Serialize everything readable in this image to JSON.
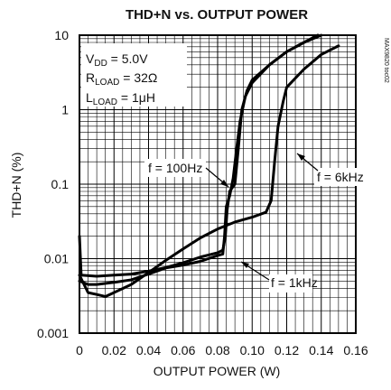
{
  "chart_data": {
    "type": "line",
    "title": "THD+N vs. OUTPUT POWER",
    "xlabel": "OUTPUT POWER (W)",
    "ylabel": "THD+N (%)",
    "x_scale": "linear",
    "y_scale": "log",
    "xlim": [
      0,
      0.16
    ],
    "ylim": [
      0.001,
      10
    ],
    "x_ticks": [
      "0",
      "0.02",
      "0.04",
      "0.06",
      "0.08",
      "0.10",
      "0.12",
      "0.14",
      "0.16"
    ],
    "y_ticks": [
      "0.001",
      "0.01",
      "0.1",
      "1",
      "10"
    ],
    "grid": true,
    "conditions": {
      "vdd_base": "V",
      "vdd_sub": "DD",
      "vdd_value": " = 5.0V",
      "rload_base": "R",
      "rload_sub": "LOAD",
      "rload_value": " = 32Ω",
      "lload_base": "L",
      "lload_sub": "LOAD",
      "lload_value": " = 1μH"
    },
    "side_label": "MAX9820 toc02",
    "series": [
      {
        "name": "f = 100Hz",
        "points": [
          [
            0,
            0.02
          ],
          [
            0.001,
            0.006
          ],
          [
            0.01,
            0.0058
          ],
          [
            0.02,
            0.006
          ],
          [
            0.03,
            0.0062
          ],
          [
            0.04,
            0.0068
          ],
          [
            0.05,
            0.0076
          ],
          [
            0.06,
            0.0088
          ],
          [
            0.07,
            0.0105
          ],
          [
            0.08,
            0.012
          ],
          [
            0.083,
            0.013
          ],
          [
            0.0845,
            0.02
          ],
          [
            0.0855,
            0.045
          ],
          [
            0.087,
            0.08
          ],
          [
            0.0885,
            0.09
          ],
          [
            0.09,
            0.1
          ],
          [
            0.092,
            0.3
          ],
          [
            0.094,
            1.0
          ],
          [
            0.097,
            1.8
          ],
          [
            0.1,
            2.5
          ],
          [
            0.11,
            4.0
          ],
          [
            0.12,
            6.0
          ],
          [
            0.13,
            8.0
          ],
          [
            0.138,
            10
          ]
        ]
      },
      {
        "name": "f = 1kHz",
        "points": [
          [
            0,
            0.005
          ],
          [
            0.005,
            0.0045
          ],
          [
            0.01,
            0.0045
          ],
          [
            0.02,
            0.0048
          ],
          [
            0.03,
            0.0052
          ],
          [
            0.04,
            0.0062
          ],
          [
            0.05,
            0.0075
          ],
          [
            0.06,
            0.0082
          ],
          [
            0.07,
            0.0092
          ],
          [
            0.08,
            0.011
          ],
          [
            0.083,
            0.0115
          ],
          [
            0.084,
            0.02
          ],
          [
            0.085,
            0.05
          ],
          [
            0.087,
            0.07
          ],
          [
            0.089,
            0.12
          ],
          [
            0.091,
            0.3
          ],
          [
            0.093,
            0.7
          ],
          [
            0.096,
            1.5
          ],
          [
            0.1,
            2.3
          ],
          [
            0.11,
            4.0
          ],
          [
            0.12,
            6.0
          ],
          [
            0.13,
            8.0
          ],
          [
            0.14,
            10
          ]
        ]
      },
      {
        "name": "f = 6kHz",
        "points": [
          [
            0,
            0.006
          ],
          [
            0.005,
            0.0035
          ],
          [
            0.01,
            0.0033
          ],
          [
            0.015,
            0.0031
          ],
          [
            0.02,
            0.0035
          ],
          [
            0.03,
            0.0045
          ],
          [
            0.04,
            0.0065
          ],
          [
            0.05,
            0.0095
          ],
          [
            0.06,
            0.0135
          ],
          [
            0.07,
            0.019
          ],
          [
            0.08,
            0.025
          ],
          [
            0.09,
            0.031
          ],
          [
            0.1,
            0.036
          ],
          [
            0.108,
            0.042
          ],
          [
            0.111,
            0.06
          ],
          [
            0.113,
            0.2
          ],
          [
            0.115,
            0.6
          ],
          [
            0.118,
            1.3
          ],
          [
            0.12,
            2.0
          ],
          [
            0.13,
            3.5
          ],
          [
            0.14,
            5.5
          ],
          [
            0.15,
            7.2
          ]
        ]
      }
    ]
  }
}
